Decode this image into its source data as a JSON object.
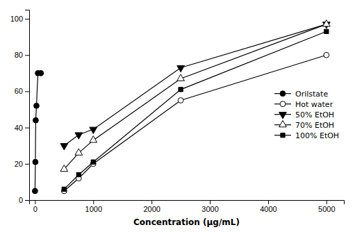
{
  "chart_data": {
    "type": "line",
    "x_label": "Concentration (μg/mL)",
    "xlim": [
      -100,
      5300
    ],
    "ylim": [
      0,
      105
    ],
    "xticks": [
      0,
      1000,
      2000,
      3000,
      4000,
      5000
    ],
    "yticks": [
      0,
      20,
      40,
      60,
      80,
      100
    ],
    "legend": "right",
    "series": [
      {
        "name": "Orilstate",
        "color": "black",
        "marker": "circle",
        "line_style": "solid",
        "x": [
          0,
          6.25,
          12.5,
          25,
          50,
          100
        ],
        "values": [
          5,
          21,
          44,
          52,
          70,
          70
        ]
      },
      {
        "name": "Hot water",
        "color": "black",
        "marker": "circle-open",
        "line_style": "solid",
        "x": [
          500,
          750,
          1000,
          2500,
          5000
        ],
        "values": [
          5,
          12,
          20,
          55,
          80
        ]
      },
      {
        "name": "50% EtOH",
        "color": "black",
        "marker": "triangle-down",
        "line_style": "solid",
        "x": [
          500,
          750,
          1000,
          2500,
          5000
        ],
        "values": [
          30,
          36,
          39,
          73,
          97
        ]
      },
      {
        "name": "70% EtOH",
        "color": "black",
        "marker": "triangle-up-open",
        "line_style": "solid",
        "x": [
          500,
          750,
          1000,
          2500,
          5000
        ],
        "values": [
          17,
          26,
          33,
          67,
          97
        ]
      },
      {
        "name": "100% EtOH",
        "color": "black",
        "marker": "square",
        "line_style": "solid",
        "x": [
          500,
          750,
          1000,
          2500,
          5000
        ],
        "values": [
          6,
          14,
          21,
          61,
          93
        ]
      }
    ]
  }
}
